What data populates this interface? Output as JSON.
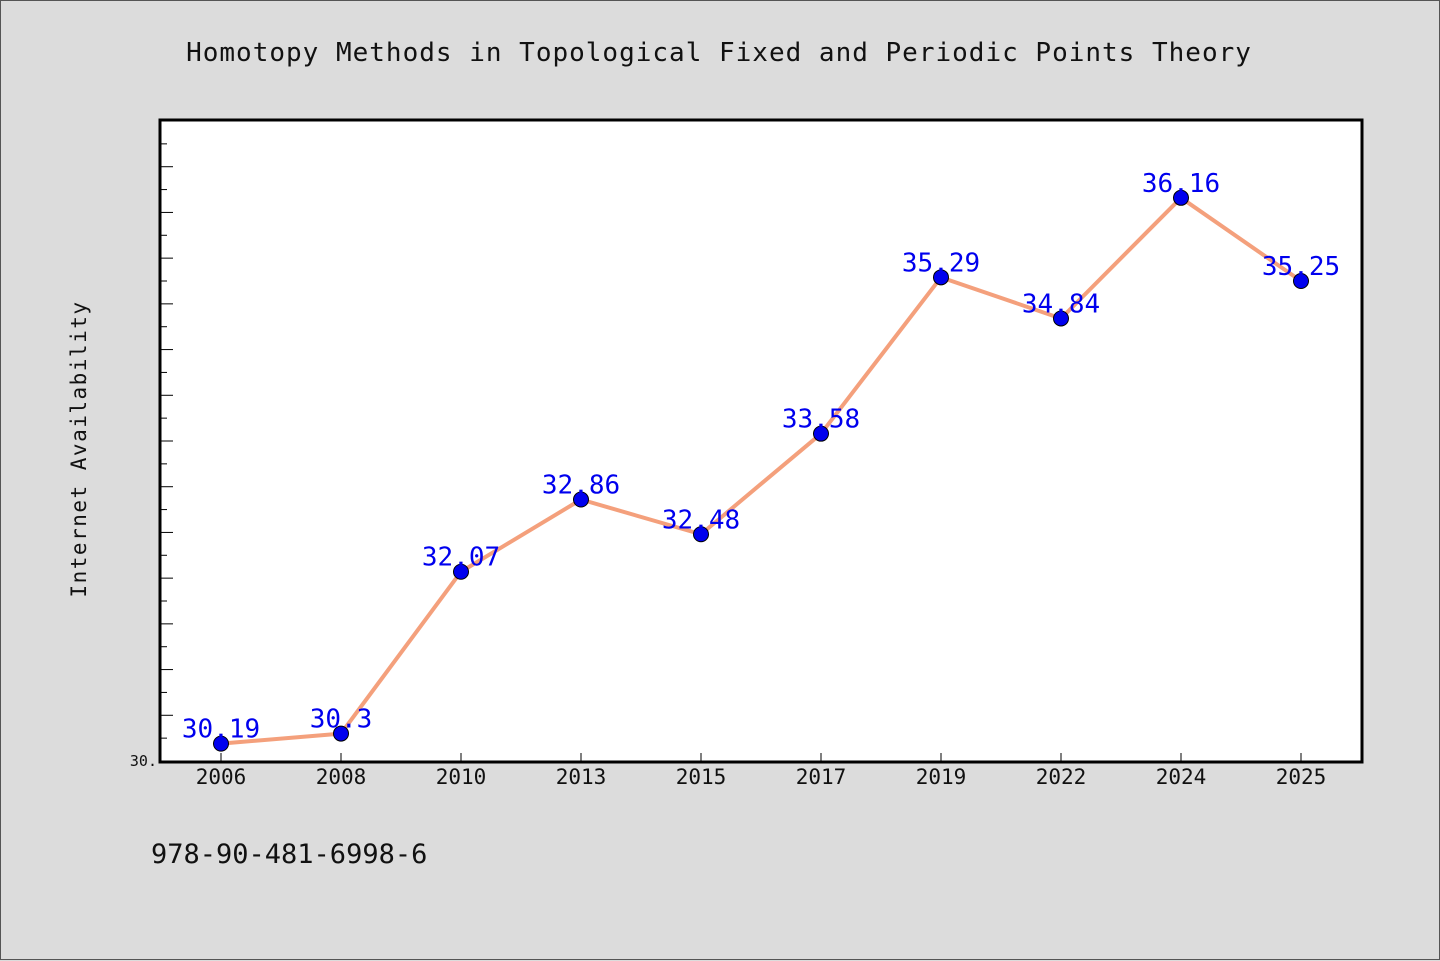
{
  "chart_data": {
    "type": "line",
    "title": "Homotopy Methods in Topological Fixed and Periodic Points Theory",
    "xlabel": "",
    "ylabel": "Internet Availability",
    "categories": [
      "2006",
      "2008",
      "2010",
      "2013",
      "2015",
      "2017",
      "2019",
      "2022",
      "2024",
      "2025"
    ],
    "values": [
      30.19,
      30.3,
      32.07,
      32.86,
      32.48,
      33.58,
      35.29,
      34.84,
      36.16,
      35.25
    ],
    "data_labels": [
      "30.19",
      "30.3",
      "32.07",
      "32.86",
      "32.48",
      "33.58",
      "35.29",
      "34.84",
      "36.16",
      "35.25"
    ],
    "ylim": [
      30.0,
      37.0
    ],
    "y_tick_label": "30.",
    "grid": false,
    "legend": "none",
    "colors": {
      "line": "#f4a07c",
      "marker": "#0000ee",
      "label": "#0000ee",
      "background": "#dcdcdc",
      "plot_area": "#ffffff"
    }
  },
  "footer": {
    "isbn": "978-90-481-6998-6"
  }
}
